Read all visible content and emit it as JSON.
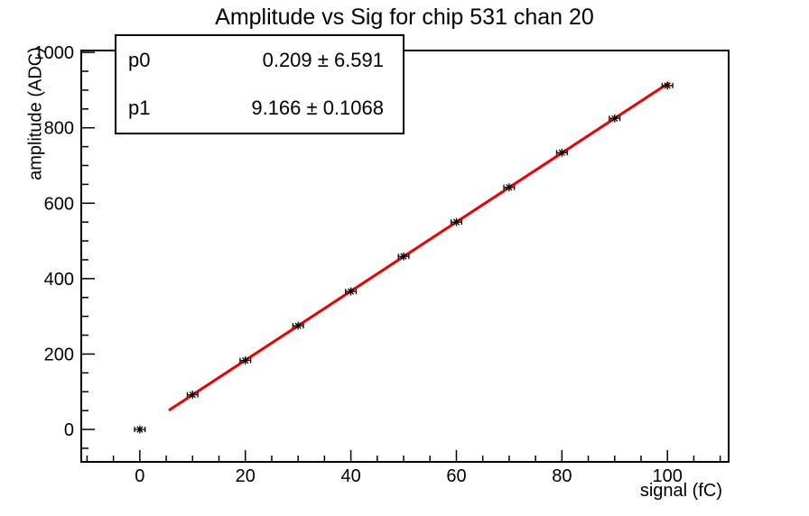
{
  "title": "Amplitude vs Sig for chip 531 chan 20",
  "stats_box": {
    "rows": [
      {
        "label": "p0",
        "value": "0.209 ± 6.591"
      },
      {
        "label": "p1",
        "value": "9.166 ± 0.1068"
      }
    ]
  },
  "chart_data": {
    "type": "scatter",
    "title": "Amplitude vs Sig for chip 531 chan 20",
    "xlabel": "signal (fC)",
    "ylabel": "amplitude (ADC)",
    "x": [
      0,
      10,
      20,
      30,
      40,
      50,
      60,
      70,
      80,
      90,
      100
    ],
    "y": [
      0,
      92,
      183,
      275,
      366,
      459,
      550,
      642,
      734,
      825,
      912
    ],
    "x_err": 1,
    "xlim": [
      -11.1,
      111.6
    ],
    "ylim": [
      -86,
      1005
    ],
    "x_major_ticks": [
      0,
      20,
      40,
      60,
      80,
      100
    ],
    "x_minor_step": 5,
    "y_major_ticks": [
      0,
      200,
      400,
      600,
      800,
      1000
    ],
    "y_minor_step": 50,
    "grid": false,
    "legend": "none",
    "marker": "asterisk-with-x-error-bars",
    "fit": {
      "type": "linear",
      "p0": 0.209,
      "p1": 9.166,
      "x_range": [
        5.5,
        100.3
      ]
    },
    "colors": {
      "axis": "#000000",
      "marker": "#000000",
      "fit_line": "#ee0000",
      "background": "#ffffff"
    }
  }
}
